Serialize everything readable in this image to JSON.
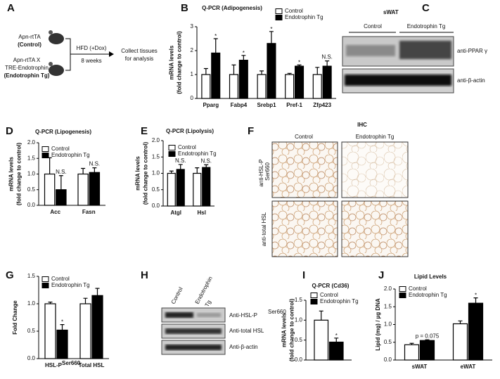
{
  "chart_data": [
    {
      "type": "bar",
      "panel_label": "B",
      "title": "Q-PCR (Adipogenesis)",
      "y_label": [
        "mRNA levels",
        "(fold change to control)"
      ],
      "categories": [
        "Pparg",
        "Fabp4",
        "Srebp1",
        "Pref-1",
        "Zfp423"
      ],
      "series": [
        {
          "name": "Control",
          "color": "#ffffff",
          "values": [
            1,
            1,
            1,
            1,
            1
          ],
          "errors": [
            0.25,
            0.4,
            0.15,
            0.05,
            0.3
          ]
        },
        {
          "name": "Endotrophin Tg",
          "color": "#000000",
          "values": [
            1.9,
            1.6,
            2.3,
            1.35,
            1.35
          ],
          "errors": [
            0.6,
            0.2,
            0.5,
            0.05,
            0.22
          ]
        }
      ],
      "annotations": [
        "*",
        "*",
        "*",
        "*",
        "N.S."
      ],
      "ylim": [
        0,
        3
      ],
      "yticks": [
        0,
        1,
        2,
        3
      ]
    },
    {
      "type": "bar",
      "panel_label": "D",
      "title": "Q-PCR (Lipogenesis)",
      "y_label": [
        "mRNA levels",
        "(fold change to control)"
      ],
      "categories": [
        "Acc",
        "Fasn"
      ],
      "series": [
        {
          "name": "Control",
          "color": "#ffffff",
          "values": [
            1.0,
            1.0
          ],
          "errors": [
            0.52,
            0.18
          ]
        },
        {
          "name": "Endotrophin Tg",
          "color": "#000000",
          "values": [
            0.5,
            1.05
          ],
          "errors": [
            0.45,
            0.15
          ]
        }
      ],
      "annotations": [
        "N.S.",
        "N.S."
      ],
      "ylim": [
        0,
        2
      ],
      "yticks": [
        {
          "value": 0,
          "label": "0.0"
        },
        0.5,
        {
          "value": 1,
          "label": "1.0"
        },
        1.5,
        {
          "value": 2,
          "label": "2.0"
        }
      ]
    },
    {
      "type": "bar",
      "panel_label": "E",
      "title": "Q-PCR (Lipolysis)",
      "y_label": [
        "mRNA levels",
        "(fold change to control)"
      ],
      "categories": [
        "Atgl",
        "Hsl"
      ],
      "series": [
        {
          "name": "Control",
          "color": "#ffffff",
          "values": [
            1.0,
            1.0
          ],
          "errors": [
            0.07,
            0.17
          ]
        },
        {
          "name": "Endotrophin Tg",
          "color": "#000000",
          "values": [
            1.12,
            1.18
          ],
          "errors": [
            0.15,
            0.08
          ]
        }
      ],
      "annotations": [
        "N.S.",
        "N.S."
      ],
      "ylim": [
        0,
        2
      ],
      "yticks": [
        {
          "value": 0,
          "label": "0.0"
        },
        0.5,
        {
          "value": 1,
          "label": "1.0"
        },
        1.5,
        {
          "value": 2,
          "label": "2.0"
        }
      ]
    },
    {
      "type": "bar",
      "panel_label": "G",
      "y_label": [
        "Fold Change"
      ],
      "categories": [
        "HSL-P",
        "Total HSL"
      ],
      "category_superscripts": [
        "Ser660",
        null
      ],
      "series": [
        {
          "name": "Control",
          "color": "#ffffff",
          "values": [
            1.0,
            1.0
          ],
          "errors": [
            0.03,
            0.1
          ]
        },
        {
          "name": "Endotrophin Tg",
          "color": "#000000",
          "values": [
            0.52,
            1.15
          ],
          "errors": [
            0.1,
            0.13
          ]
        }
      ],
      "annotations": [
        "*",
        null
      ],
      "ylim": [
        0,
        1.5
      ],
      "yticks": [
        {
          "value": 0,
          "label": "0.0"
        },
        0.5,
        {
          "value": 1,
          "label": "1.0"
        },
        1.5
      ]
    },
    {
      "type": "bar",
      "panel_label": "I",
      "title": "Q-PCR (Cd36)",
      "y_label": [
        "mRNA levels",
        "(fold change to control)"
      ],
      "categories": [
        null
      ],
      "series": [
        {
          "name": "Control",
          "color": "#ffffff",
          "values": [
            1.0
          ],
          "errors": [
            0.23
          ]
        },
        {
          "name": "Endotrophin Tg",
          "color": "#000000",
          "values": [
            0.45
          ],
          "errors": [
            0.1
          ]
        }
      ],
      "annotations": [
        "*"
      ],
      "ylim": [
        0,
        1.5
      ],
      "yticks": [
        {
          "value": 0,
          "label": "0.0"
        },
        0.5,
        {
          "value": 1,
          "label": "1.0"
        },
        1.5
      ]
    },
    {
      "type": "bar",
      "panel_label": "J",
      "title": "Lipid Levels",
      "y_label": [
        "Lipid (mg) / µg DNA"
      ],
      "categories": [
        "sWAT",
        "eWAT"
      ],
      "series": [
        {
          "name": "Control",
          "color": "#ffffff",
          "values": [
            0.43,
            1.02
          ],
          "errors": [
            0.04,
            0.08
          ]
        },
        {
          "name": "Endotrophin Tg",
          "color": "#000000",
          "values": [
            0.55,
            1.6
          ],
          "errors": [
            0.02,
            0.15
          ]
        }
      ],
      "annotations": [
        "p = 0.075",
        "*"
      ],
      "ylim": [
        0,
        2
      ],
      "yticks": [
        {
          "value": 0,
          "label": "0.0"
        },
        0.5,
        {
          "value": 1,
          "label": "1.0"
        },
        1.5,
        {
          "value": 2,
          "label": "2.0"
        }
      ]
    }
  ],
  "panel_a": {
    "panel_label": "A",
    "control": [
      "Apn-rtTA",
      "(Control)"
    ],
    "transgenic": [
      "Apn-rtTA X",
      "TRE-Endotrophin",
      "(Endotrophin Tg)"
    ],
    "treatment": "HFD (+Dox)",
    "duration": "8 weeks",
    "outcome": [
      "Collect tissues",
      "for analysis"
    ]
  },
  "panel_c": {
    "panel_label": "C",
    "tissue": "sWAT",
    "groups": [
      "Control",
      "Endotrophin Tg"
    ],
    "blots": [
      "anti-PPAR γ",
      "anti-β-actin"
    ]
  },
  "panel_f": {
    "panel_label": "F",
    "title": "IHC",
    "groups": [
      "Control",
      "Endotrophin Tg"
    ],
    "rows": [
      "anti-HSL-P",
      "anti-total HSL"
    ],
    "row_superscript": "Ser660"
  },
  "panel_h": {
    "panel_label": "H",
    "groups": [
      "Control",
      "Endotrophin",
      "Tg"
    ],
    "blots": [
      "Anti-HSL-P",
      "Anti-total HSL",
      "Anti-β-actin"
    ],
    "blot_superscript": "Ser660"
  }
}
